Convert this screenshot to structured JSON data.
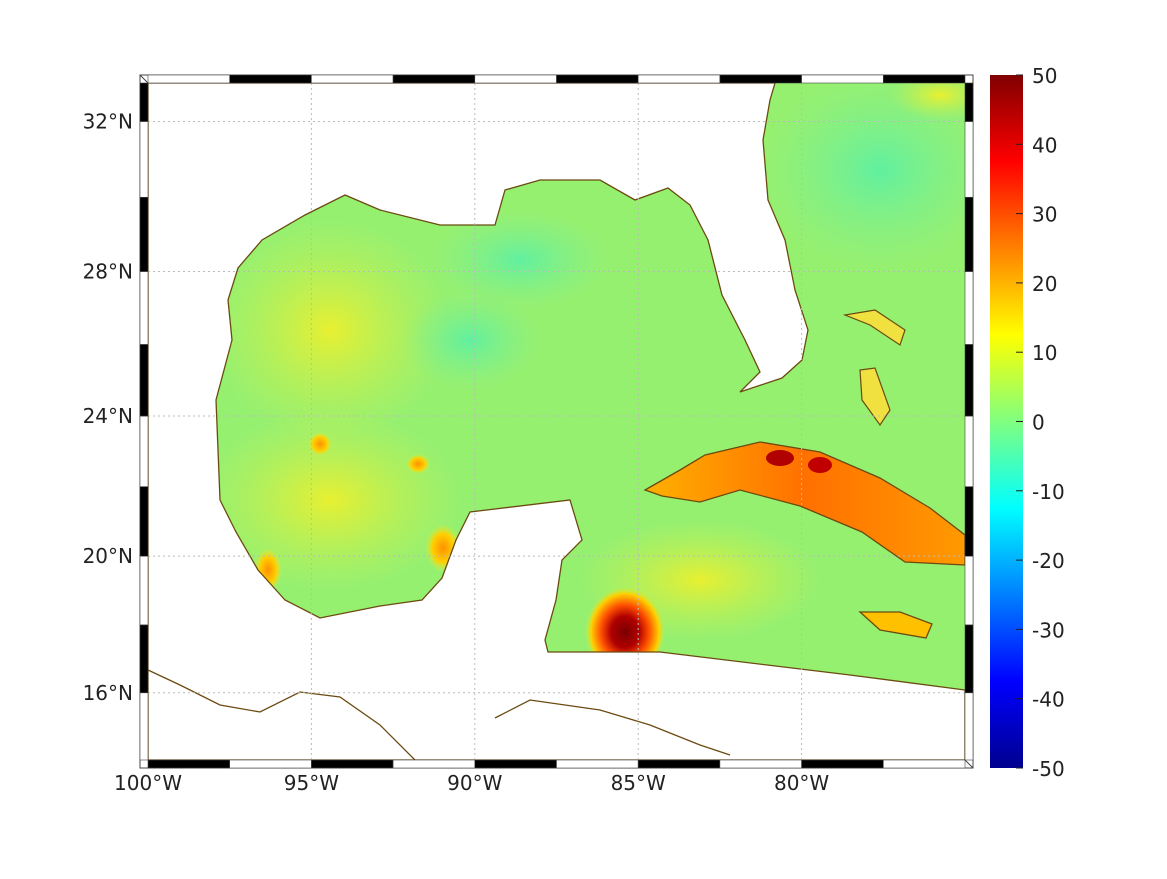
{
  "map": {
    "lon_range": [
      -100,
      -75
    ],
    "lat_range": [
      14,
      33
    ],
    "lon_ticks": [
      {
        "value": -100,
        "label": "100°W"
      },
      {
        "value": -95,
        "label": "95°W"
      },
      {
        "value": -90,
        "label": "90°W"
      },
      {
        "value": -85,
        "label": "85°W"
      },
      {
        "value": -80,
        "label": "80°W"
      }
    ],
    "lat_ticks": [
      {
        "value": 32,
        "label": "32°N"
      },
      {
        "value": 28,
        "label": "28°N"
      },
      {
        "value": 24,
        "label": "24°N"
      },
      {
        "value": 20,
        "label": "20°N"
      },
      {
        "value": 16,
        "label": "16°N"
      }
    ],
    "coast_color": "#6b4a10"
  },
  "colorbar": {
    "range": [
      -50,
      50
    ],
    "ticks": [
      "50",
      "40",
      "30",
      "20",
      "10",
      "0",
      "-10",
      "-20",
      "-30",
      "-40",
      "-50"
    ],
    "colormap": [
      "#00008f",
      "#0000ff",
      "#0080ff",
      "#00ffff",
      "#80ff80",
      "#ffff00",
      "#ff8000",
      "#ff0000",
      "#800000"
    ]
  }
}
